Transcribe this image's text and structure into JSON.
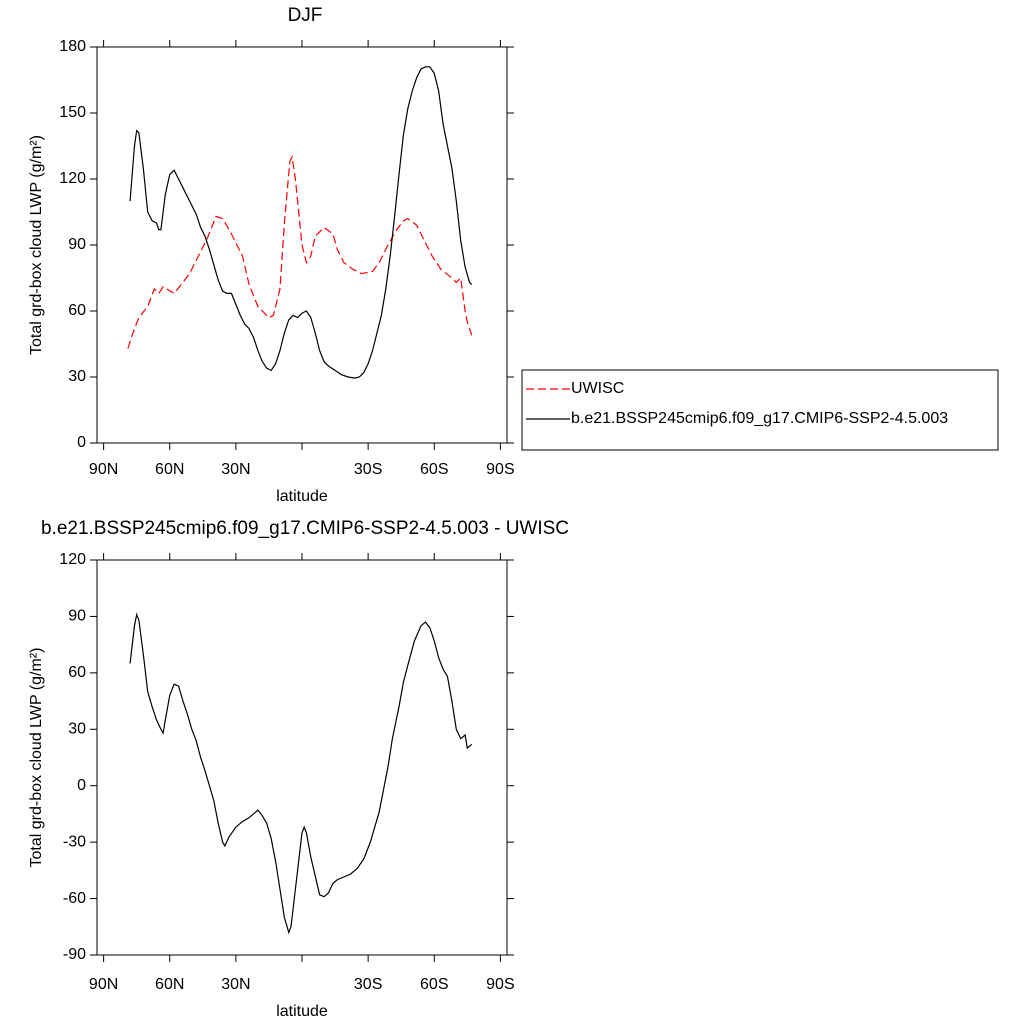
{
  "chart_data": [
    {
      "type": "line",
      "title": "DJF",
      "xlabel": "latitude",
      "ylabel": "Total grd-box cloud LWP (g/m²)",
      "xlim": [
        93,
        -93
      ],
      "xticks": [
        {
          "value": 90,
          "label": "90N"
        },
        {
          "value": 60,
          "label": "60N"
        },
        {
          "value": 30,
          "label": "30N"
        },
        {
          "value": 0,
          "label": null
        },
        {
          "value": -30,
          "label": "30S"
        },
        {
          "value": -60,
          "label": "60S"
        },
        {
          "value": -90,
          "label": "90S"
        }
      ],
      "ylim": [
        0,
        180
      ],
      "yticks": [
        0,
        30,
        60,
        90,
        120,
        150,
        180
      ],
      "legend": "right",
      "series": [
        {
          "name": "UWISC",
          "color": "#ff0000",
          "dashed": true,
          "x": [
            79,
            76,
            74,
            70,
            67,
            65,
            63,
            58,
            54,
            51,
            47,
            43,
            39,
            36,
            32,
            27,
            24,
            20,
            15,
            13,
            10,
            8,
            5.5,
            4.5,
            3,
            0,
            -2,
            -4,
            -6,
            -10,
            -14,
            -16,
            -19,
            -23,
            -27,
            -32,
            -35,
            -39,
            -43,
            -46,
            -48,
            -52,
            -55,
            -59,
            -63,
            -68,
            -70,
            -72,
            -74,
            -75,
            -77
          ],
          "values": [
            43,
            52,
            57,
            62,
            70,
            68,
            71,
            68,
            73,
            77,
            85,
            93,
            103,
            102,
            95,
            85,
            72,
            62,
            57,
            58,
            70,
            100,
            128,
            130,
            120,
            90,
            82,
            85,
            94,
            98,
            95,
            88,
            82,
            79,
            77,
            78,
            82,
            90,
            97,
            101,
            102,
            99,
            93,
            85,
            79,
            75,
            73,
            75,
            60,
            55,
            49
          ]
        },
        {
          "name": "b.e21.BSSP245cmip6.f09_g17.CMIP6-SSP2-4.5.003",
          "color": "#000000",
          "dashed": false,
          "x": [
            78,
            76,
            75,
            74,
            72,
            70,
            68,
            66,
            65,
            64,
            62,
            60,
            58,
            56,
            54,
            52,
            50,
            48,
            46,
            44,
            42,
            40,
            38,
            36,
            34,
            32,
            30,
            28,
            26,
            24,
            22,
            20,
            18,
            16,
            14,
            12,
            10,
            8,
            6,
            4,
            2,
            0,
            -2,
            -4,
            -6,
            -8,
            -10,
            -12,
            -15,
            -18,
            -21,
            -24,
            -26,
            -28,
            -30,
            -32,
            -34,
            -36,
            -38,
            -40,
            -42,
            -44,
            -46,
            -48,
            -50,
            -52,
            -54,
            -56,
            -58,
            -60,
            -62,
            -64,
            -66,
            -68,
            -70,
            -72,
            -74,
            -76,
            -77
          ],
          "values": [
            110,
            135,
            142,
            141,
            125,
            105,
            101,
            100,
            97,
            97,
            113,
            122,
            124,
            120,
            116,
            112,
            108,
            104,
            98,
            94,
            88,
            81,
            74,
            69,
            68,
            68,
            63,
            58,
            54,
            52,
            48,
            42,
            37,
            34,
            33,
            36,
            42,
            50,
            56,
            58,
            57,
            59,
            60,
            57,
            50,
            42,
            37,
            35,
            33,
            31,
            30,
            29.5,
            30,
            32,
            36,
            42,
            50,
            58,
            70,
            85,
            103,
            122,
            140,
            152,
            160,
            166,
            170,
            171,
            171,
            168,
            160,
            145,
            135,
            125,
            110,
            92,
            80,
            73,
            72
          ]
        }
      ]
    },
    {
      "type": "line",
      "title": "b.e21.BSSP245cmip6.f09_g17.CMIP6-SSP2-4.5.003 - UWISC",
      "xlabel": "latitude",
      "ylabel": "Total grd-box cloud LWP (g/m²)",
      "xlim": [
        93,
        -93
      ],
      "xticks": [
        {
          "value": 90,
          "label": "90N"
        },
        {
          "value": 60,
          "label": "60N"
        },
        {
          "value": 30,
          "label": "30N"
        },
        {
          "value": 0,
          "label": null
        },
        {
          "value": -30,
          "label": "30S"
        },
        {
          "value": -60,
          "label": "60S"
        },
        {
          "value": -90,
          "label": "90S"
        }
      ],
      "ylim": [
        -90,
        120
      ],
      "yticks": [
        -90,
        -60,
        -30,
        0,
        30,
        60,
        90,
        120
      ],
      "series": [
        {
          "color": "#000000",
          "dashed": false,
          "x": [
            78,
            76,
            75,
            74,
            72,
            70,
            68,
            66,
            64,
            63,
            62,
            60,
            58,
            56,
            54,
            52,
            50,
            48,
            46,
            44,
            42,
            40,
            38,
            36,
            35,
            33,
            30,
            27,
            24,
            22,
            20,
            18,
            16,
            14,
            12,
            10,
            8,
            6,
            5,
            3,
            1,
            0,
            -1,
            -2,
            -4,
            -6,
            -8,
            -10,
            -12,
            -14,
            -16,
            -18,
            -20,
            -22,
            -25,
            -28,
            -31,
            -33,
            -35,
            -37,
            -39,
            -41,
            -44,
            -46,
            -48,
            -51,
            -54,
            -56,
            -58,
            -60,
            -62,
            -64,
            -66,
            -68,
            -70,
            -72,
            -74,
            -75,
            -77
          ],
          "values": [
            65,
            85,
            91,
            88,
            70,
            50,
            42,
            35,
            30,
            28,
            35,
            48,
            54,
            53,
            45,
            38,
            30,
            24,
            15,
            8,
            0,
            -8,
            -20,
            -30,
            -32,
            -27,
            -22,
            -19,
            -17,
            -15,
            -13,
            -16,
            -20,
            -28,
            -40,
            -55,
            -70,
            -78,
            -75,
            -55,
            -35,
            -25,
            -22,
            -25,
            -38,
            -48,
            -58,
            -59,
            -57,
            -52,
            -50,
            -49,
            -48,
            -47,
            -44,
            -39,
            -30,
            -22,
            -14,
            -2,
            10,
            25,
            42,
            55,
            64,
            77,
            85,
            87,
            84,
            77,
            68,
            62,
            58,
            45,
            30,
            25,
            27,
            20,
            22
          ]
        }
      ]
    }
  ]
}
